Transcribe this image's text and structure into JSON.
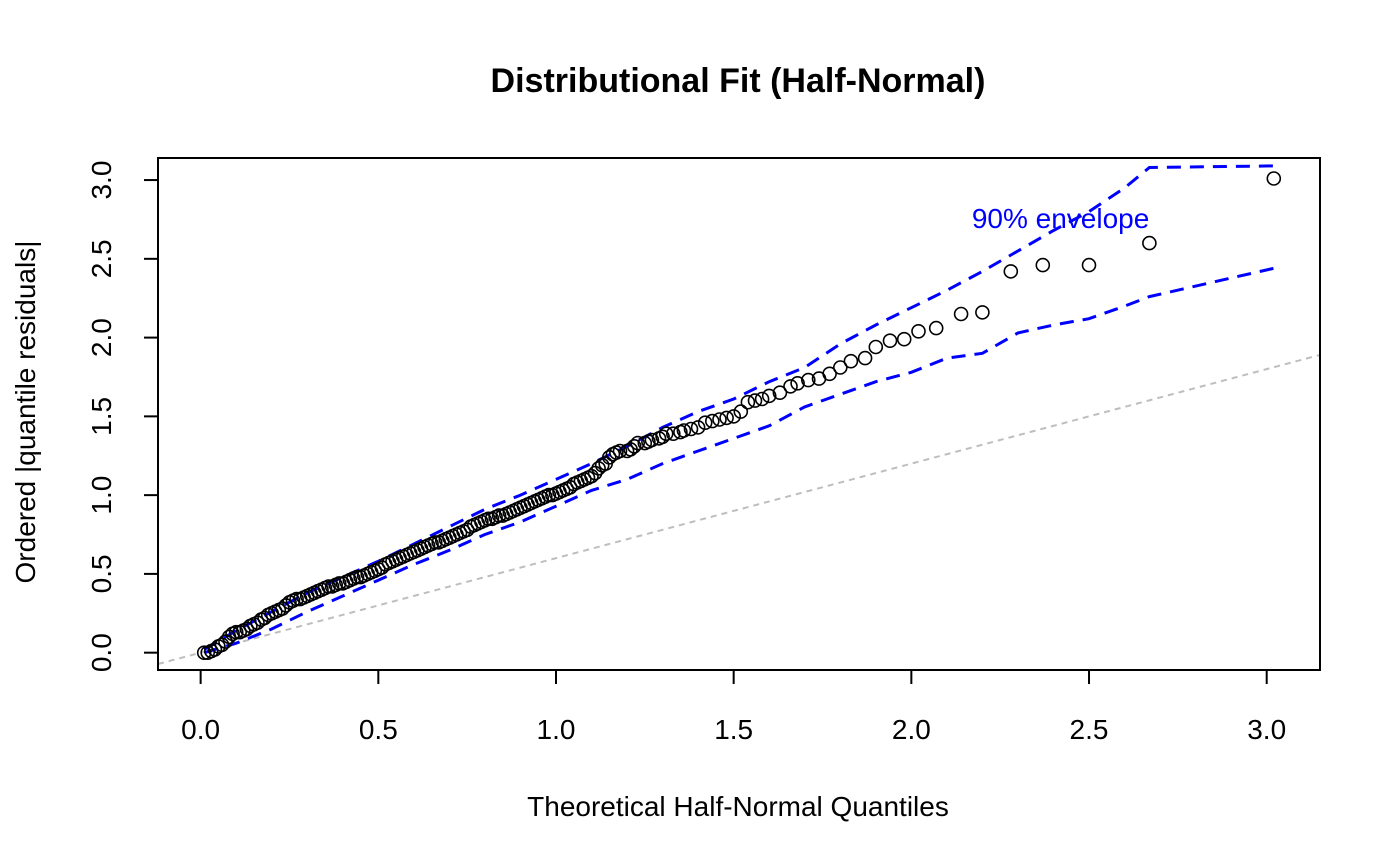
{
  "chart_data": {
    "type": "scatter",
    "title": "Distributional Fit (Half-Normal)",
    "xlabel": "Theoretical Half-Normal Quantiles",
    "ylabel": "Ordered |quantile residuals|",
    "xlim": [
      -0.12,
      3.15
    ],
    "ylim": [
      -0.11,
      3.14
    ],
    "x_ticks": [
      0.0,
      0.5,
      1.0,
      1.5,
      2.0,
      2.5,
      3.0
    ],
    "y_ticks": [
      0.0,
      0.5,
      1.0,
      1.5,
      2.0,
      2.5,
      3.0
    ],
    "x_tick_labels": [
      "0.0",
      "0.5",
      "1.0",
      "1.5",
      "2.0",
      "2.5",
      "3.0"
    ],
    "y_tick_labels": [
      "0.0",
      "0.5",
      "1.0",
      "1.5",
      "2.0",
      "2.5",
      "3.0"
    ],
    "grid": false,
    "annotation": {
      "text": "90% envelope",
      "x": 2.42,
      "y": 2.76,
      "color": "#0000ff"
    },
    "reference_line": {
      "slope": 0.6,
      "intercept": 0.0,
      "color": "#bebebe",
      "style": "dashed"
    },
    "points_color": "#000000",
    "envelope_color": "#0000ff",
    "points": [
      [
        0.01,
        0.0
      ],
      [
        0.02,
        0.0
      ],
      [
        0.03,
        0.01
      ],
      [
        0.04,
        0.02
      ],
      [
        0.05,
        0.04
      ],
      [
        0.06,
        0.05
      ],
      [
        0.07,
        0.07
      ],
      [
        0.08,
        0.1
      ],
      [
        0.09,
        0.12
      ],
      [
        0.1,
        0.13
      ],
      [
        0.11,
        0.13
      ],
      [
        0.12,
        0.14
      ],
      [
        0.13,
        0.15
      ],
      [
        0.14,
        0.17
      ],
      [
        0.15,
        0.18
      ],
      [
        0.16,
        0.19
      ],
      [
        0.17,
        0.21
      ],
      [
        0.18,
        0.22
      ],
      [
        0.19,
        0.24
      ],
      [
        0.2,
        0.25
      ],
      [
        0.21,
        0.26
      ],
      [
        0.22,
        0.27
      ],
      [
        0.23,
        0.28
      ],
      [
        0.24,
        0.3
      ],
      [
        0.25,
        0.32
      ],
      [
        0.26,
        0.33
      ],
      [
        0.27,
        0.34
      ],
      [
        0.28,
        0.34
      ],
      [
        0.29,
        0.35
      ],
      [
        0.3,
        0.36
      ],
      [
        0.31,
        0.37
      ],
      [
        0.32,
        0.38
      ],
      [
        0.33,
        0.39
      ],
      [
        0.34,
        0.4
      ],
      [
        0.35,
        0.41
      ],
      [
        0.36,
        0.42
      ],
      [
        0.37,
        0.42
      ],
      [
        0.38,
        0.43
      ],
      [
        0.39,
        0.44
      ],
      [
        0.4,
        0.44
      ],
      [
        0.41,
        0.45
      ],
      [
        0.42,
        0.46
      ],
      [
        0.43,
        0.47
      ],
      [
        0.44,
        0.48
      ],
      [
        0.45,
        0.48
      ],
      [
        0.46,
        0.49
      ],
      [
        0.47,
        0.5
      ],
      [
        0.48,
        0.51
      ],
      [
        0.49,
        0.52
      ],
      [
        0.5,
        0.53
      ],
      [
        0.51,
        0.54
      ],
      [
        0.52,
        0.56
      ],
      [
        0.53,
        0.57
      ],
      [
        0.54,
        0.58
      ],
      [
        0.55,
        0.59
      ],
      [
        0.56,
        0.6
      ],
      [
        0.57,
        0.61
      ],
      [
        0.58,
        0.62
      ],
      [
        0.59,
        0.63
      ],
      [
        0.6,
        0.64
      ],
      [
        0.61,
        0.65
      ],
      [
        0.62,
        0.66
      ],
      [
        0.63,
        0.67
      ],
      [
        0.64,
        0.68
      ],
      [
        0.65,
        0.69
      ],
      [
        0.66,
        0.7
      ],
      [
        0.67,
        0.7
      ],
      [
        0.68,
        0.71
      ],
      [
        0.69,
        0.72
      ],
      [
        0.7,
        0.73
      ],
      [
        0.71,
        0.74
      ],
      [
        0.72,
        0.75
      ],
      [
        0.73,
        0.76
      ],
      [
        0.74,
        0.77
      ],
      [
        0.75,
        0.78
      ],
      [
        0.76,
        0.8
      ],
      [
        0.77,
        0.81
      ],
      [
        0.78,
        0.82
      ],
      [
        0.79,
        0.83
      ],
      [
        0.8,
        0.84
      ],
      [
        0.81,
        0.85
      ],
      [
        0.82,
        0.85
      ],
      [
        0.83,
        0.86
      ],
      [
        0.84,
        0.87
      ],
      [
        0.85,
        0.87
      ],
      [
        0.86,
        0.88
      ],
      [
        0.87,
        0.89
      ],
      [
        0.88,
        0.9
      ],
      [
        0.89,
        0.91
      ],
      [
        0.9,
        0.92
      ],
      [
        0.91,
        0.93
      ],
      [
        0.92,
        0.94
      ],
      [
        0.93,
        0.95
      ],
      [
        0.94,
        0.96
      ],
      [
        0.95,
        0.97
      ],
      [
        0.96,
        0.98
      ],
      [
        0.97,
        0.99
      ],
      [
        0.98,
        1.0
      ],
      [
        0.99,
        1.0
      ],
      [
        1.0,
        1.01
      ],
      [
        1.01,
        1.02
      ],
      [
        1.02,
        1.03
      ],
      [
        1.03,
        1.04
      ],
      [
        1.04,
        1.05
      ],
      [
        1.05,
        1.07
      ],
      [
        1.06,
        1.08
      ],
      [
        1.07,
        1.09
      ],
      [
        1.08,
        1.1
      ],
      [
        1.09,
        1.11
      ],
      [
        1.1,
        1.12
      ],
      [
        1.11,
        1.14
      ],
      [
        1.12,
        1.17
      ],
      [
        1.13,
        1.19
      ],
      [
        1.14,
        1.2
      ],
      [
        1.15,
        1.24
      ],
      [
        1.16,
        1.26
      ],
      [
        1.17,
        1.27
      ],
      [
        1.18,
        1.28
      ],
      [
        1.2,
        1.28
      ],
      [
        1.21,
        1.29
      ],
      [
        1.22,
        1.31
      ],
      [
        1.23,
        1.33
      ],
      [
        1.25,
        1.33
      ],
      [
        1.26,
        1.34
      ],
      [
        1.27,
        1.35
      ],
      [
        1.29,
        1.36
      ],
      [
        1.3,
        1.37
      ],
      [
        1.31,
        1.39
      ],
      [
        1.33,
        1.39
      ],
      [
        1.35,
        1.4
      ],
      [
        1.36,
        1.41
      ],
      [
        1.38,
        1.42
      ],
      [
        1.4,
        1.43
      ],
      [
        1.42,
        1.46
      ],
      [
        1.44,
        1.47
      ],
      [
        1.46,
        1.48
      ],
      [
        1.48,
        1.49
      ],
      [
        1.5,
        1.5
      ],
      [
        1.52,
        1.53
      ],
      [
        1.54,
        1.59
      ],
      [
        1.56,
        1.6
      ],
      [
        1.58,
        1.61
      ],
      [
        1.6,
        1.63
      ],
      [
        1.63,
        1.65
      ],
      [
        1.66,
        1.69
      ],
      [
        1.68,
        1.71
      ],
      [
        1.71,
        1.73
      ],
      [
        1.74,
        1.74
      ],
      [
        1.77,
        1.77
      ],
      [
        1.8,
        1.81
      ],
      [
        1.83,
        1.85
      ],
      [
        1.87,
        1.87
      ],
      [
        1.9,
        1.94
      ],
      [
        1.94,
        1.98
      ],
      [
        1.98,
        1.99
      ],
      [
        2.02,
        2.04
      ],
      [
        2.07,
        2.06
      ],
      [
        2.14,
        2.15
      ],
      [
        2.2,
        2.16
      ],
      [
        2.28,
        2.42
      ],
      [
        2.37,
        2.46
      ],
      [
        2.5,
        2.46
      ],
      [
        2.67,
        2.6
      ],
      [
        3.02,
        3.01
      ]
    ],
    "envelope_upper": [
      [
        0.01,
        0.02
      ],
      [
        0.1,
        0.14
      ],
      [
        0.2,
        0.26
      ],
      [
        0.3,
        0.38
      ],
      [
        0.4,
        0.48
      ],
      [
        0.5,
        0.58
      ],
      [
        0.6,
        0.69
      ],
      [
        0.7,
        0.8
      ],
      [
        0.8,
        0.91
      ],
      [
        0.9,
        1.0
      ],
      [
        1.0,
        1.1
      ],
      [
        1.1,
        1.2
      ],
      [
        1.2,
        1.31
      ],
      [
        1.3,
        1.43
      ],
      [
        1.4,
        1.53
      ],
      [
        1.5,
        1.61
      ],
      [
        1.6,
        1.72
      ],
      [
        1.7,
        1.81
      ],
      [
        1.8,
        1.96
      ],
      [
        1.9,
        2.08
      ],
      [
        2.0,
        2.19
      ],
      [
        2.1,
        2.3
      ],
      [
        2.2,
        2.42
      ],
      [
        2.3,
        2.55
      ],
      [
        2.4,
        2.68
      ],
      [
        2.5,
        2.8
      ],
      [
        2.6,
        2.95
      ],
      [
        2.67,
        3.08
      ],
      [
        3.02,
        3.09
      ]
    ],
    "envelope_lower": [
      [
        0.01,
        0.0
      ],
      [
        0.1,
        0.06
      ],
      [
        0.2,
        0.15
      ],
      [
        0.3,
        0.26
      ],
      [
        0.4,
        0.36
      ],
      [
        0.5,
        0.46
      ],
      [
        0.6,
        0.56
      ],
      [
        0.7,
        0.65
      ],
      [
        0.8,
        0.75
      ],
      [
        0.9,
        0.83
      ],
      [
        1.0,
        0.93
      ],
      [
        1.1,
        1.03
      ],
      [
        1.2,
        1.1
      ],
      [
        1.3,
        1.2
      ],
      [
        1.4,
        1.28
      ],
      [
        1.5,
        1.36
      ],
      [
        1.6,
        1.44
      ],
      [
        1.7,
        1.56
      ],
      [
        1.8,
        1.64
      ],
      [
        1.9,
        1.72
      ],
      [
        2.0,
        1.78
      ],
      [
        2.1,
        1.87
      ],
      [
        2.2,
        1.9
      ],
      [
        2.3,
        2.03
      ],
      [
        2.4,
        2.08
      ],
      [
        2.5,
        2.12
      ],
      [
        2.6,
        2.2
      ],
      [
        2.67,
        2.26
      ],
      [
        3.02,
        2.44
      ]
    ]
  }
}
